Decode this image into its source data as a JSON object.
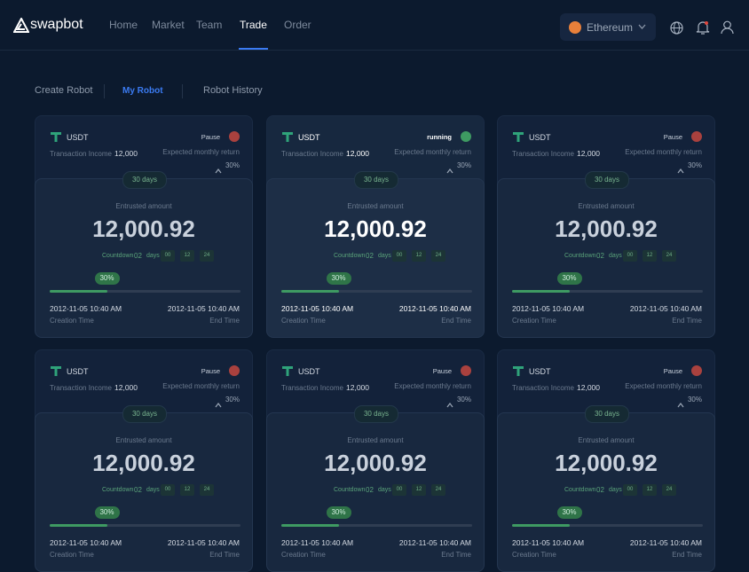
{
  "header": {
    "logo": "swapbot",
    "nav": [
      "Home",
      "Market",
      "Team",
      "Trade",
      "Order"
    ],
    "network": "Ethereum"
  },
  "tabs": [
    "Create Robot",
    "My Robot",
    "Robot History"
  ],
  "cards": [
    {
      "coin": "USDT",
      "status": "Pause",
      "income_label": "Transaction Income",
      "income": "12,000",
      "return_label": "Expected monthly return",
      "return": "30%",
      "duration": "30 days",
      "amount_label": "Entrusted amount",
      "amount": "12,000.92",
      "countdown_label": "Countdown",
      "days": "02",
      "days_label": "days",
      "hours": "00",
      "minutes": "12",
      "seconds": "24",
      "progress": "30%",
      "start": "2012-11-05 10:40 AM",
      "start_label": "Creation Time",
      "end": "2012-11-05 10:40 AM",
      "end_label": "End Time"
    },
    {
      "coin": "USDT",
      "status": "running",
      "income_label": "Transaction Income",
      "income": "12,000",
      "return_label": "Expected monthly return",
      "return": "30%",
      "duration": "30 days",
      "amount_label": "Entrusted amount",
      "amount": "12,000.92",
      "countdown_label": "Countdown",
      "days": "02",
      "days_label": "days",
      "hours": "00",
      "minutes": "12",
      "seconds": "24",
      "progress": "30%",
      "start": "2012-11-05 10:40 AM",
      "start_label": "Creation Time",
      "end": "2012-11-05 10:40 AM",
      "end_label": "End Time"
    },
    {
      "coin": "USDT",
      "status": "Pause",
      "income_label": "Transaction Income",
      "income": "12,000",
      "return_label": "Expected monthly return",
      "return": "30%",
      "duration": "30 days",
      "amount_label": "Entrusted amount",
      "amount": "12,000.92",
      "countdown_label": "Countdown",
      "days": "02",
      "days_label": "days",
      "hours": "00",
      "minutes": "12",
      "seconds": "24",
      "progress": "30%",
      "start": "2012-11-05 10:40 AM",
      "start_label": "Creation Time",
      "end": "2012-11-05 10:40 AM",
      "end_label": "End Time"
    },
    {
      "coin": "USDT",
      "status": "Pause",
      "income_label": "Transaction Income",
      "income": "12,000",
      "return_label": "Expected monthly return",
      "return": "30%",
      "duration": "30 days",
      "amount_label": "Entrusted amount",
      "amount": "12,000.92",
      "countdown_label": "Countdown",
      "days": "02",
      "days_label": "days",
      "hours": "00",
      "minutes": "12",
      "seconds": "24",
      "progress": "30%",
      "start": "2012-11-05 10:40 AM",
      "start_label": "Creation Time",
      "end": "2012-11-05 10:40 AM",
      "end_label": "End Time"
    },
    {
      "coin": "USDT",
      "status": "Pause",
      "income_label": "Transaction Income",
      "income": "12,000",
      "return_label": "Expected monthly return",
      "return": "30%",
      "duration": "30 days",
      "amount_label": "Entrusted amount",
      "amount": "12,000.92",
      "countdown_label": "Countdown",
      "days": "02",
      "days_label": "days",
      "hours": "00",
      "minutes": "12",
      "seconds": "24",
      "progress": "30%",
      "start": "2012-11-05 10:40 AM",
      "start_label": "Creation Time",
      "end": "2012-11-05 10:40 AM",
      "end_label": "End Time"
    },
    {
      "coin": "USDT",
      "status": "Pause",
      "income_label": "Transaction Income",
      "income": "12,000",
      "return_label": "Expected monthly return",
      "return": "30%",
      "duration": "30 days",
      "amount_label": "Entrusted amount",
      "amount": "12,000.92",
      "countdown_label": "Countdown",
      "days": "02",
      "days_label": "days",
      "hours": "00",
      "minutes": "12",
      "seconds": "24",
      "progress": "30%",
      "start": "2012-11-05 10:40 AM",
      "start_label": "Creation Time",
      "end": "2012-11-05 10:40 AM",
      "end_label": "End Time"
    }
  ]
}
